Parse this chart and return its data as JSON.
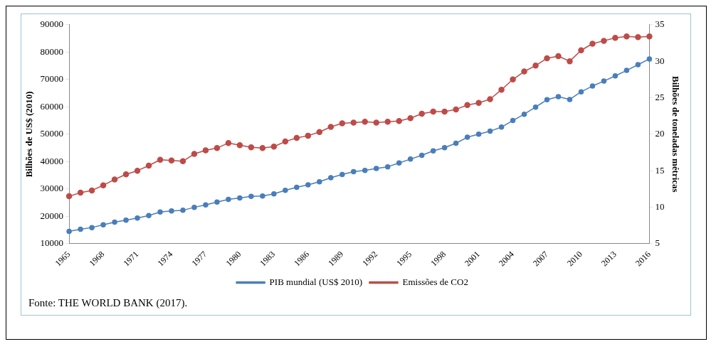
{
  "chart_data": {
    "type": "line",
    "ylabel": "Bilhões de US$ (2010)",
    "y2label": "Bilhões de toneladas métricas",
    "categories": [
      "1965",
      null,
      null,
      "1968",
      null,
      null,
      "1971",
      null,
      null,
      "1974",
      null,
      null,
      "1977",
      null,
      null,
      "1980",
      null,
      null,
      "1983",
      null,
      null,
      "1986",
      null,
      null,
      "1989",
      null,
      null,
      "1992",
      null,
      null,
      "1995",
      null,
      null,
      "1998",
      null,
      null,
      "2001",
      null,
      null,
      "2004",
      null,
      null,
      "2007",
      null,
      null,
      "2010",
      null,
      null,
      "2013",
      null,
      null,
      "2016"
    ],
    "series": [
      {
        "name": "PIB mundial (US$ 2010)",
        "color": "#4a7ebb",
        "marker": "circle",
        "values": [
          14500,
          15300,
          15900,
          16900,
          17900,
          18600,
          19400,
          20300,
          21600,
          22000,
          22200,
          23300,
          24200,
          25200,
          26200,
          26700,
          27300,
          27400,
          28200,
          29500,
          30600,
          31500,
          32600,
          34100,
          35300,
          36300,
          36800,
          37500,
          38100,
          39500,
          40900,
          42300,
          43900,
          45100,
          46700,
          48900,
          50000,
          51100,
          52600,
          55000,
          57300,
          59900,
          62600,
          63700,
          62700,
          65500,
          67600,
          69400,
          71300,
          73300,
          75400,
          77500
        ]
      },
      {
        "name": "Emissões de CO2",
        "color": "#be4b48",
        "marker": "circle",
        "axis": "y2",
        "values": [
          11.5,
          12,
          12.3,
          13,
          13.8,
          14.5,
          15,
          15.7,
          16.5,
          16.4,
          16.3,
          17.3,
          17.8,
          18.1,
          18.8,
          18.5,
          18.2,
          18.1,
          18.3,
          19,
          19.5,
          19.8,
          20.3,
          21,
          21.5,
          21.6,
          21.7,
          21.6,
          21.7,
          21.8,
          22.2,
          22.8,
          23.1,
          23.1,
          23.4,
          24,
          24.3,
          24.8,
          26.1,
          27.5,
          28.6,
          29.4,
          30.4,
          30.7,
          30,
          31.5,
          32.4,
          32.8,
          33.2,
          33.4,
          33.3,
          33.4
        ]
      }
    ],
    "ylim": [
      10000,
      90000
    ],
    "yticks": [
      10000,
      20000,
      30000,
      40000,
      50000,
      60000,
      70000,
      80000,
      90000
    ],
    "y2lim": [
      5,
      35
    ],
    "y2ticks": [
      5,
      10,
      15,
      20,
      25,
      30,
      35
    ],
    "grid": false,
    "legend": "bottom",
    "annotations": [
      "Fonte: THE WORLD BANK (2017)."
    ]
  }
}
